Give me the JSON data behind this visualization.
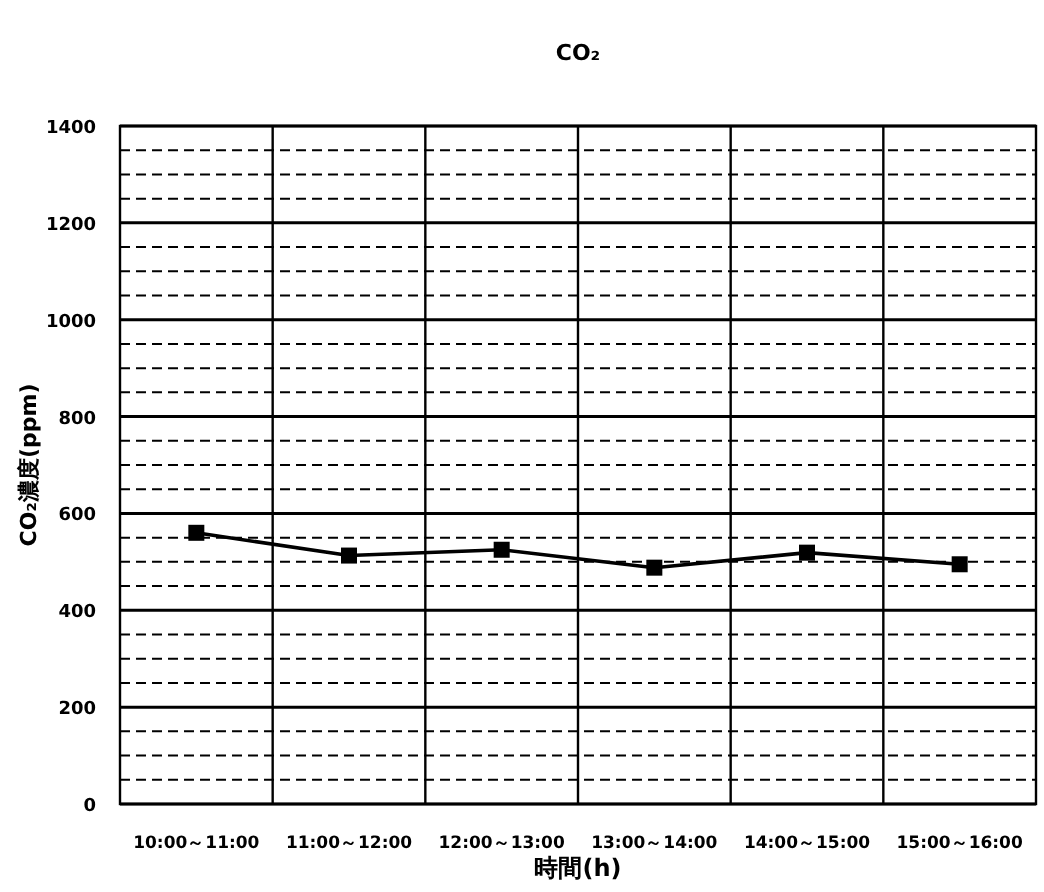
{
  "chart_data": {
    "type": "line",
    "title": "CO₂",
    "xlabel": "時間(h)",
    "ylabel": "CO₂濃度(ppm)",
    "categories": [
      "10:00～11:00",
      "11:00～12:00",
      "12:00～13:00",
      "13:00～14:00",
      "14:00～15:00",
      "15:00～16:00"
    ],
    "series": [
      {
        "color": "#000000",
        "values": [
          560,
          513,
          525,
          488,
          519,
          495
        ]
      }
    ],
    "ylim": [
      0,
      1400
    ],
    "yticks": [
      0,
      {
        "value": 50,
        "label": null
      },
      {
        "value": 100,
        "label": null
      },
      {
        "value": 150,
        "label": null
      },
      200,
      {
        "value": 250,
        "label": null
      },
      {
        "value": 300,
        "label": null
      },
      {
        "value": 350,
        "label": null
      },
      400,
      {
        "value": 450,
        "label": null
      },
      {
        "value": 500,
        "label": null
      },
      {
        "value": 550,
        "label": null
      },
      600,
      {
        "value": 650,
        "label": null
      },
      {
        "value": 700,
        "label": null
      },
      {
        "value": 750,
        "label": null
      },
      800,
      {
        "value": 850,
        "label": null
      },
      {
        "value": 900,
        "label": null
      },
      {
        "value": 950,
        "label": null
      },
      1000,
      {
        "value": 1050,
        "label": null
      },
      {
        "value": 1100,
        "label": null
      },
      {
        "value": 1150,
        "label": null
      },
      1200,
      {
        "value": 1250,
        "label": null
      },
      {
        "value": 1300,
        "label": null
      },
      {
        "value": 1350,
        "label": null
      },
      1400
    ],
    "grid": true,
    "marker": "square",
    "line_style": "solid"
  }
}
